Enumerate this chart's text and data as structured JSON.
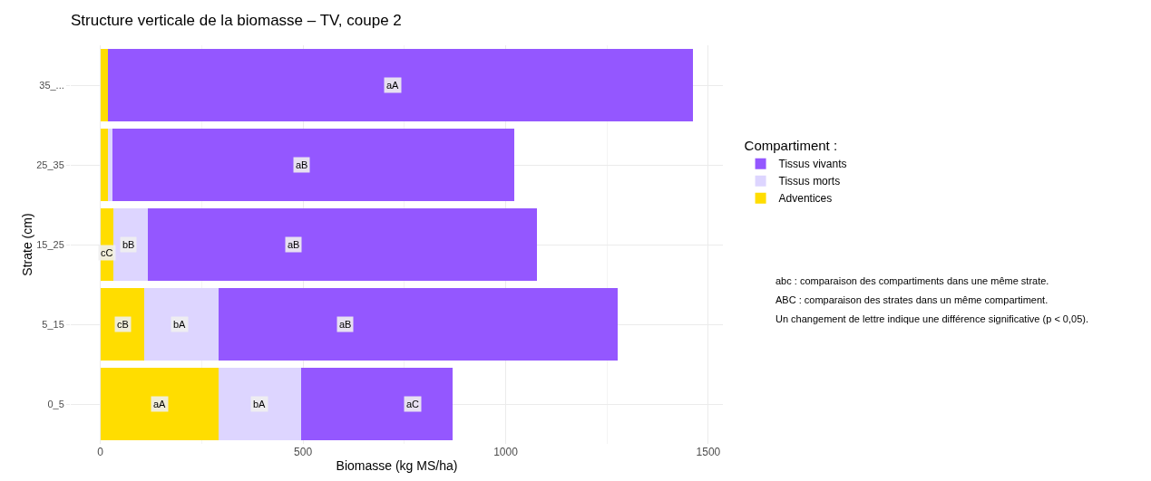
{
  "chart_data": {
    "type": "bar",
    "orientation": "horizontal",
    "stacked": true,
    "title": "Structure verticale de la biomasse – TV, coupe 2",
    "xlabel": "Biomasse (kg MS/ha)",
    "ylabel": "Strate (cm)",
    "legend_title": "Compartiment :",
    "legend": "right",
    "grid": true,
    "categories": [
      "35_...",
      "25_35",
      "15_25",
      "5_15",
      "0_5"
    ],
    "series": [
      {
        "name": "Adventices",
        "color": "#ffdd00",
        "values": [
          18,
          18,
          33,
          109,
          292
        ]
      },
      {
        "name": "Tissus morts",
        "color": "#ddd5ff",
        "values": [
          0,
          11,
          85,
          182,
          203
        ]
      },
      {
        "name": "Tissus vivants",
        "color": "#9457ff",
        "values": [
          1445,
          993,
          960,
          986,
          374
        ]
      }
    ],
    "xlim": [
      -73,
      1536
    ],
    "xticks": [
      0,
      500,
      1000,
      1500
    ],
    "annotations": [
      {
        "text": "aA",
        "x": 722,
        "y": "35_..."
      },
      {
        "text": "aB",
        "x": 497,
        "y": "25_35"
      },
      {
        "text": "cC",
        "x": 16,
        "y": "15_25"
      },
      {
        "text": "bB",
        "x": 69,
        "y": "15_25"
      },
      {
        "text": "aB",
        "x": 477,
        "y": "15_25"
      },
      {
        "text": "cB",
        "x": 56,
        "y": "5_15"
      },
      {
        "text": "bA",
        "x": 196,
        "y": "5_15"
      },
      {
        "text": "aB",
        "x": 603,
        "y": "5_15"
      },
      {
        "text": "aA",
        "x": 147,
        "y": "0_5"
      },
      {
        "text": "bA",
        "x": 392,
        "y": "0_5"
      },
      {
        "text": "aC",
        "x": 770,
        "y": "0_5"
      },
      "abc : comparaison des compartiments dans une même strate.",
      "ABC : comparaison des strates dans un même compartiment.",
      "Un changement de lettre indique une différence significative (p < 0,05)."
    ]
  }
}
